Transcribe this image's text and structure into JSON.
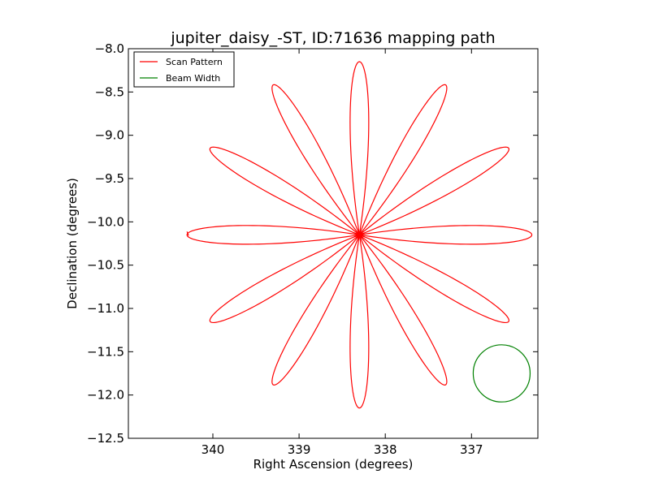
{
  "chart_data": {
    "type": "line",
    "title": "jupiter_daisy_-ST, ID:71636 mapping path",
    "xlabel": "Right Ascension (degrees)",
    "ylabel": "Declination (degrees)",
    "x_ticks": [
      340,
      339,
      338,
      337
    ],
    "x_tick_labels": [
      "340",
      "339",
      "338",
      "337"
    ],
    "y_ticks": [
      -8.0,
      -8.5,
      -9.0,
      -9.5,
      -10.0,
      -10.5,
      -11.0,
      -11.5,
      -12.0,
      -12.5
    ],
    "y_tick_labels": [
      "−8.0",
      "−8.5",
      "−9.0",
      "−9.5",
      "−10.0",
      "−10.5",
      "−11.0",
      "−11.5",
      "−12.0",
      "−12.5"
    ],
    "xlim": [
      340.98,
      336.23
    ],
    "ylim": [
      -12.5,
      -8.0
    ],
    "x_inverted": true,
    "grid": false,
    "legend_position": "top-left",
    "series": [
      {
        "name": "Scan Pattern",
        "color": "#ff0000",
        "shape": "daisy",
        "center_ra": 338.3,
        "center_dec": -10.15,
        "petals": 12,
        "radius_deg": 2.0,
        "petal_half_width_deg": 0.19,
        "start_ra": 340.3,
        "start_dec": -10.15
      },
      {
        "name": "Beam Width",
        "color": "#008000",
        "shape": "circle",
        "center_ra": 336.65,
        "center_dec": -11.75,
        "radius_deg": 0.33
      }
    ]
  }
}
